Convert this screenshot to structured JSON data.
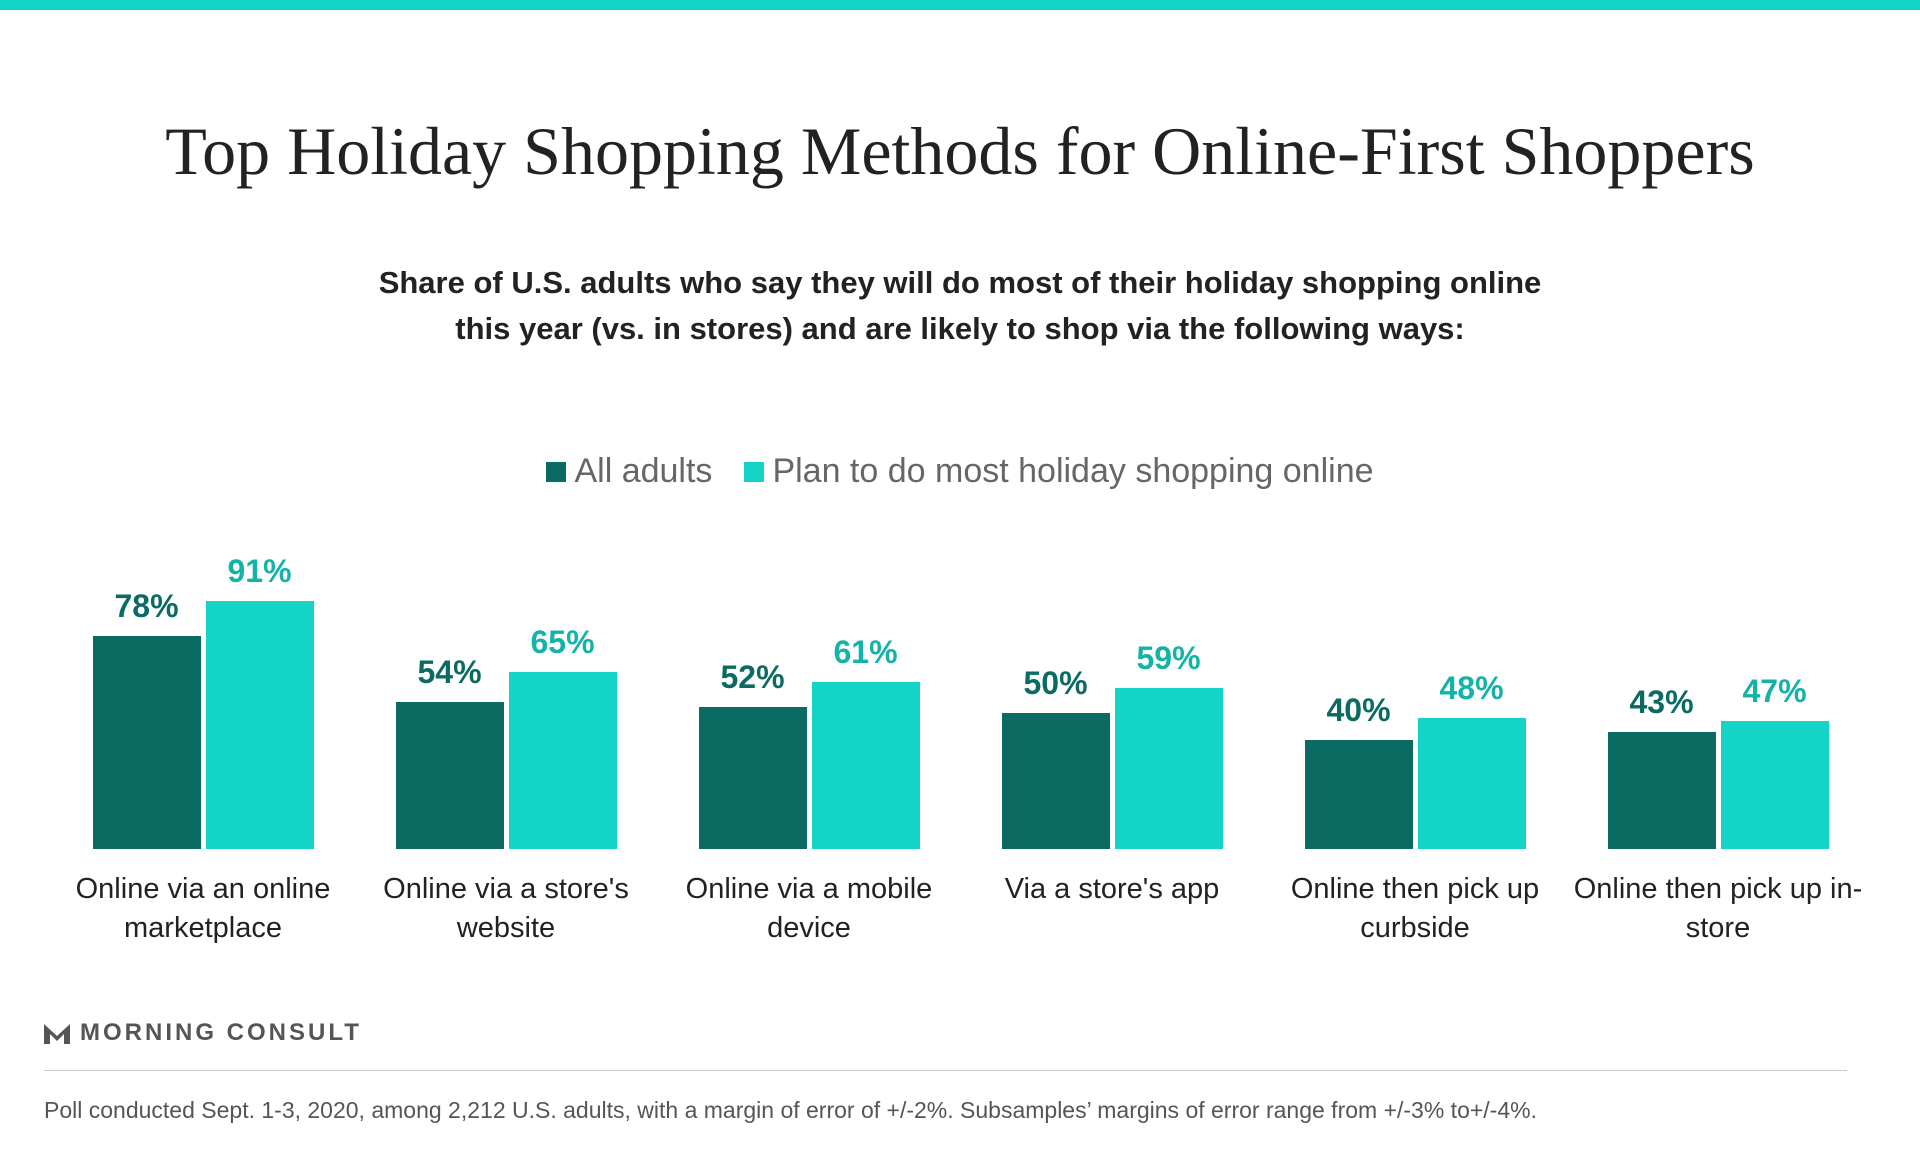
{
  "brand": "MORNING CONSULT",
  "footer": "Poll conducted Sept. 1-3, 2020, among 2,212 U.S. adults, with a margin of error of +/-2%. Subsamples’ margins of error range from +/-3% to+/-4%.",
  "chart_data": {
    "type": "bar",
    "title": "Top Holiday Shopping Methods for Online-First Shoppers",
    "subtitle": [
      "Share of U.S. adults who say they will do most of their holiday shopping online",
      "this year (vs. in stores) and are likely to shop via the following ways:"
    ],
    "categories": [
      "Online via an online marketplace",
      "Online via a store's website",
      "Online via a mobile device",
      "Via a store's app",
      "Online then pick up curbside",
      "Online then pick up in-store"
    ],
    "series": [
      {
        "name": "All adults",
        "color": "#0b6b63",
        "values": [
          78,
          54,
          52,
          50,
          40,
          43
        ],
        "value_labels": [
          "78%",
          "54%",
          "52%",
          "50%",
          "40%",
          "43%"
        ]
      },
      {
        "name": "Plan to do most holiday shopping online",
        "color": "#14d4c7",
        "values": [
          91,
          65,
          61,
          59,
          48,
          47
        ],
        "value_labels": [
          "91%",
          "65%",
          "61%",
          "59%",
          "48%",
          "47%"
        ]
      }
    ],
    "ylim": [
      0,
      100
    ]
  }
}
